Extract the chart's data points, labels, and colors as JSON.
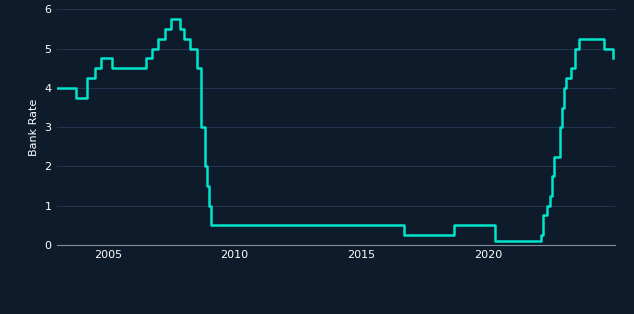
{
  "background_color": "#0d1b2a",
  "line_color": "#00e5cc",
  "line_width": 1.8,
  "ylabel": "Bank Rate",
  "legend_label": "Bank Rate",
  "ylim": [
    0,
    6
  ],
  "yticks": [
    0,
    1,
    2,
    3,
    4,
    5,
    6
  ],
  "xticks": [
    2005,
    2010,
    2015,
    2020
  ],
  "tick_color": "#ffffff",
  "grid_color": "#253550",
  "dates": [
    2003.0,
    2003.75,
    2004.17,
    2004.5,
    2004.75,
    2005.17,
    2005.5,
    2006.5,
    2006.75,
    2007.0,
    2007.25,
    2007.5,
    2007.67,
    2007.83,
    2008.0,
    2008.25,
    2008.5,
    2008.67,
    2008.83,
    2008.92,
    2009.0,
    2009.08,
    2009.17,
    2016.67,
    2017.92,
    2018.67,
    2020.25,
    2021.92,
    2022.08,
    2022.17,
    2022.33,
    2022.42,
    2022.5,
    2022.58,
    2022.67,
    2022.75,
    2022.83,
    2022.92,
    2023.0,
    2023.08,
    2023.25,
    2023.42,
    2023.58,
    2024.17,
    2024.58,
    2024.92
  ],
  "rates": [
    4.0,
    3.75,
    4.25,
    4.5,
    4.75,
    4.5,
    4.5,
    4.75,
    5.0,
    5.25,
    5.5,
    5.75,
    5.75,
    5.5,
    5.25,
    5.0,
    4.5,
    3.0,
    2.0,
    1.5,
    1.0,
    0.5,
    0.5,
    0.25,
    0.25,
    0.5,
    0.1,
    0.1,
    0.25,
    0.75,
    1.0,
    1.25,
    1.75,
    2.25,
    2.25,
    2.25,
    3.0,
    3.5,
    4.0,
    4.25,
    4.5,
    5.0,
    5.25,
    5.25,
    5.0,
    4.75
  ],
  "xlim": [
    2003.0,
    2025.0
  ]
}
